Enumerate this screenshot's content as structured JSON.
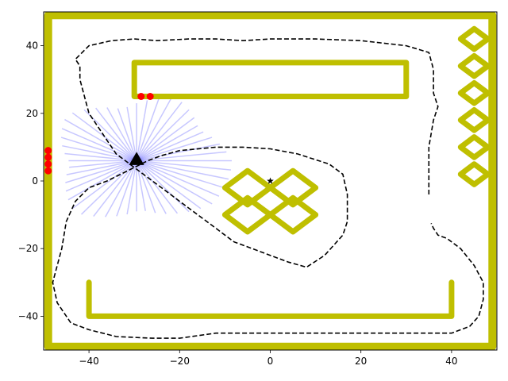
{
  "chart_data": {
    "type": "scatter",
    "title": "",
    "xlabel": "",
    "ylabel": "",
    "xlim": [
      -50,
      50
    ],
    "ylim": [
      -50,
      50
    ],
    "grid": false,
    "xticks": [
      -40,
      -20,
      0,
      20,
      40
    ],
    "yticks": [
      -40,
      -20,
      0,
      20,
      40
    ],
    "xtick_labels": [
      "−40",
      "−20",
      "0",
      "20",
      "40"
    ],
    "ytick_labels": [
      "−40",
      "−20",
      "0",
      "20",
      "40"
    ],
    "colors": {
      "wall": "#bfbf00",
      "path": "#000000",
      "rays": "#0000ff",
      "hits": "#ff0000",
      "robot": "#000000"
    },
    "walls": [
      {
        "name": "boundary",
        "points": [
          [
            -49,
            -49
          ],
          [
            49,
            -49
          ],
          [
            49,
            49
          ],
          [
            -49,
            49
          ],
          [
            -49,
            -49
          ]
        ]
      },
      {
        "name": "top-bar",
        "points": [
          [
            -30,
            35
          ],
          [
            30,
            35
          ],
          [
            30,
            25
          ],
          [
            -30,
            25
          ],
          [
            -30,
            35
          ]
        ]
      },
      {
        "name": "bottom-u",
        "points": [
          [
            -40,
            -30
          ],
          [
            -40,
            -40
          ],
          [
            40,
            -40
          ],
          [
            40,
            -30
          ]
        ]
      },
      {
        "name": "cross-diamond-ul",
        "points": [
          [
            -5,
            3
          ],
          [
            0,
            -2
          ],
          [
            -5,
            -7
          ],
          [
            -10,
            -2
          ],
          [
            -5,
            3
          ]
        ]
      },
      {
        "name": "cross-diamond-ur",
        "points": [
          [
            5,
            3
          ],
          [
            10,
            -2
          ],
          [
            5,
            -7
          ],
          [
            0,
            -2
          ],
          [
            5,
            3
          ]
        ]
      },
      {
        "name": "cross-diamond-ll",
        "points": [
          [
            -5,
            -5
          ],
          [
            0,
            -10
          ],
          [
            -5,
            -15
          ],
          [
            -10,
            -10
          ],
          [
            -5,
            -5
          ]
        ]
      },
      {
        "name": "cross-diamond-lr",
        "points": [
          [
            5,
            -5
          ],
          [
            10,
            -10
          ],
          [
            5,
            -15
          ],
          [
            0,
            -10
          ],
          [
            5,
            -5
          ]
        ]
      },
      {
        "name": "right-diamond-1",
        "points": [
          [
            45,
            45
          ],
          [
            48,
            42
          ],
          [
            45,
            39
          ],
          [
            42,
            42
          ],
          [
            45,
            45
          ]
        ]
      },
      {
        "name": "right-diamond-2",
        "points": [
          [
            45,
            37
          ],
          [
            48,
            34
          ],
          [
            45,
            31
          ],
          [
            42,
            34
          ],
          [
            45,
            37
          ]
        ]
      },
      {
        "name": "right-diamond-3",
        "points": [
          [
            45,
            29
          ],
          [
            48,
            26
          ],
          [
            45,
            23
          ],
          [
            42,
            26
          ],
          [
            45,
            29
          ]
        ]
      },
      {
        "name": "right-diamond-4",
        "points": [
          [
            45,
            21
          ],
          [
            48,
            18
          ],
          [
            45,
            15
          ],
          [
            42,
            18
          ],
          [
            45,
            21
          ]
        ]
      },
      {
        "name": "right-diamond-5",
        "points": [
          [
            45,
            13
          ],
          [
            48,
            10
          ],
          [
            45,
            7
          ],
          [
            42,
            10
          ],
          [
            45,
            13
          ]
        ]
      },
      {
        "name": "right-diamond-6",
        "points": [
          [
            45,
            5
          ],
          [
            48,
            2
          ],
          [
            45,
            -1
          ],
          [
            42,
            2
          ],
          [
            45,
            5
          ]
        ]
      }
    ],
    "path_segments": [
      [
        [
          35,
          -4
        ],
        [
          35,
          10
        ],
        [
          36,
          18
        ],
        [
          37,
          22
        ],
        [
          36,
          26
        ],
        [
          36,
          33
        ],
        [
          35,
          38
        ],
        [
          30,
          40
        ],
        [
          20,
          41.5
        ],
        [
          10,
          42
        ],
        [
          0,
          42
        ],
        [
          -6,
          41.5
        ],
        [
          -12,
          42
        ],
        [
          -18,
          42
        ],
        [
          -25,
          41.5
        ],
        [
          -30,
          42
        ],
        [
          -35,
          41.5
        ],
        [
          -40,
          40
        ],
        [
          -43,
          36
        ],
        [
          -42,
          34
        ],
        [
          -42,
          30
        ],
        [
          -41,
          25
        ],
        [
          -40,
          20
        ],
        [
          -38,
          16
        ],
        [
          -36,
          12
        ],
        [
          -34,
          8
        ],
        [
          -32,
          6
        ],
        [
          -30,
          4
        ],
        [
          -28,
          2
        ],
        [
          -26,
          0
        ],
        [
          -24,
          -2
        ],
        [
          -22,
          -4
        ],
        [
          -20,
          -6
        ],
        [
          -18,
          -8
        ],
        [
          -16,
          -10
        ],
        [
          -14,
          -12
        ],
        [
          -12,
          -14
        ],
        [
          -10,
          -16
        ],
        [
          -8,
          -18
        ],
        [
          -4,
          -20
        ],
        [
          0,
          -22
        ],
        [
          4,
          -24
        ],
        [
          8,
          -25.5
        ],
        [
          12,
          -22
        ],
        [
          16,
          -16
        ],
        [
          17,
          -12
        ],
        [
          17,
          -8
        ],
        [
          17,
          -4
        ],
        [
          16,
          2
        ],
        [
          13,
          5
        ],
        [
          6,
          8
        ],
        [
          0,
          9.5
        ],
        [
          -6,
          10
        ],
        [
          -12,
          10
        ],
        [
          -20,
          9
        ],
        [
          -24,
          7.5
        ],
        [
          -27,
          6
        ],
        [
          -30,
          4
        ],
        [
          -33,
          2
        ],
        [
          -36,
          0
        ],
        [
          -40,
          -2
        ],
        [
          -43,
          -6
        ],
        [
          -45,
          -12
        ],
        [
          -46,
          -20
        ],
        [
          -48,
          -30
        ],
        [
          -47,
          -36
        ],
        [
          -44,
          -42
        ],
        [
          -40,
          -44
        ],
        [
          -34,
          -46
        ],
        [
          -26,
          -46.5
        ],
        [
          -20,
          -46.5
        ],
        [
          -12,
          -45
        ],
        [
          -6,
          -45
        ],
        [
          0,
          -45
        ],
        [
          10,
          -45
        ],
        [
          20,
          -45
        ],
        [
          30,
          -45
        ],
        [
          40,
          -45
        ],
        [
          44,
          -43
        ],
        [
          46,
          -40
        ],
        [
          47,
          -35
        ],
        [
          47,
          -30
        ],
        [
          45,
          -25
        ],
        [
          42,
          -20
        ],
        [
          39,
          -17
        ],
        [
          37,
          -16
        ],
        [
          36,
          -14
        ],
        [
          35.5,
          -12.5
        ]
      ]
    ],
    "robot": {
      "x": -29.5,
      "y": 6,
      "heading_deg": 90
    },
    "target": {
      "x": 0,
      "y": 0
    },
    "rays": {
      "origin": [
        -29.5,
        6
      ],
      "count": 48,
      "lengths": [
        21,
        20,
        19,
        18,
        17,
        17,
        18,
        19,
        20,
        20,
        19,
        18,
        17,
        16,
        16,
        17,
        18,
        19,
        20,
        20,
        19,
        18,
        17,
        16,
        15,
        15,
        16,
        17,
        18,
        19,
        20,
        20,
        19,
        18,
        17,
        16,
        15,
        15,
        16,
        17,
        18,
        19,
        20,
        21,
        21,
        21,
        21,
        21
      ]
    },
    "hits": [
      {
        "x": -28.5,
        "y": 25
      },
      {
        "x": -26.5,
        "y": 25
      },
      {
        "x": -49,
        "y": 9
      },
      {
        "x": -49,
        "y": 7
      },
      {
        "x": -49,
        "y": 5
      },
      {
        "x": -49,
        "y": 3
      }
    ]
  }
}
